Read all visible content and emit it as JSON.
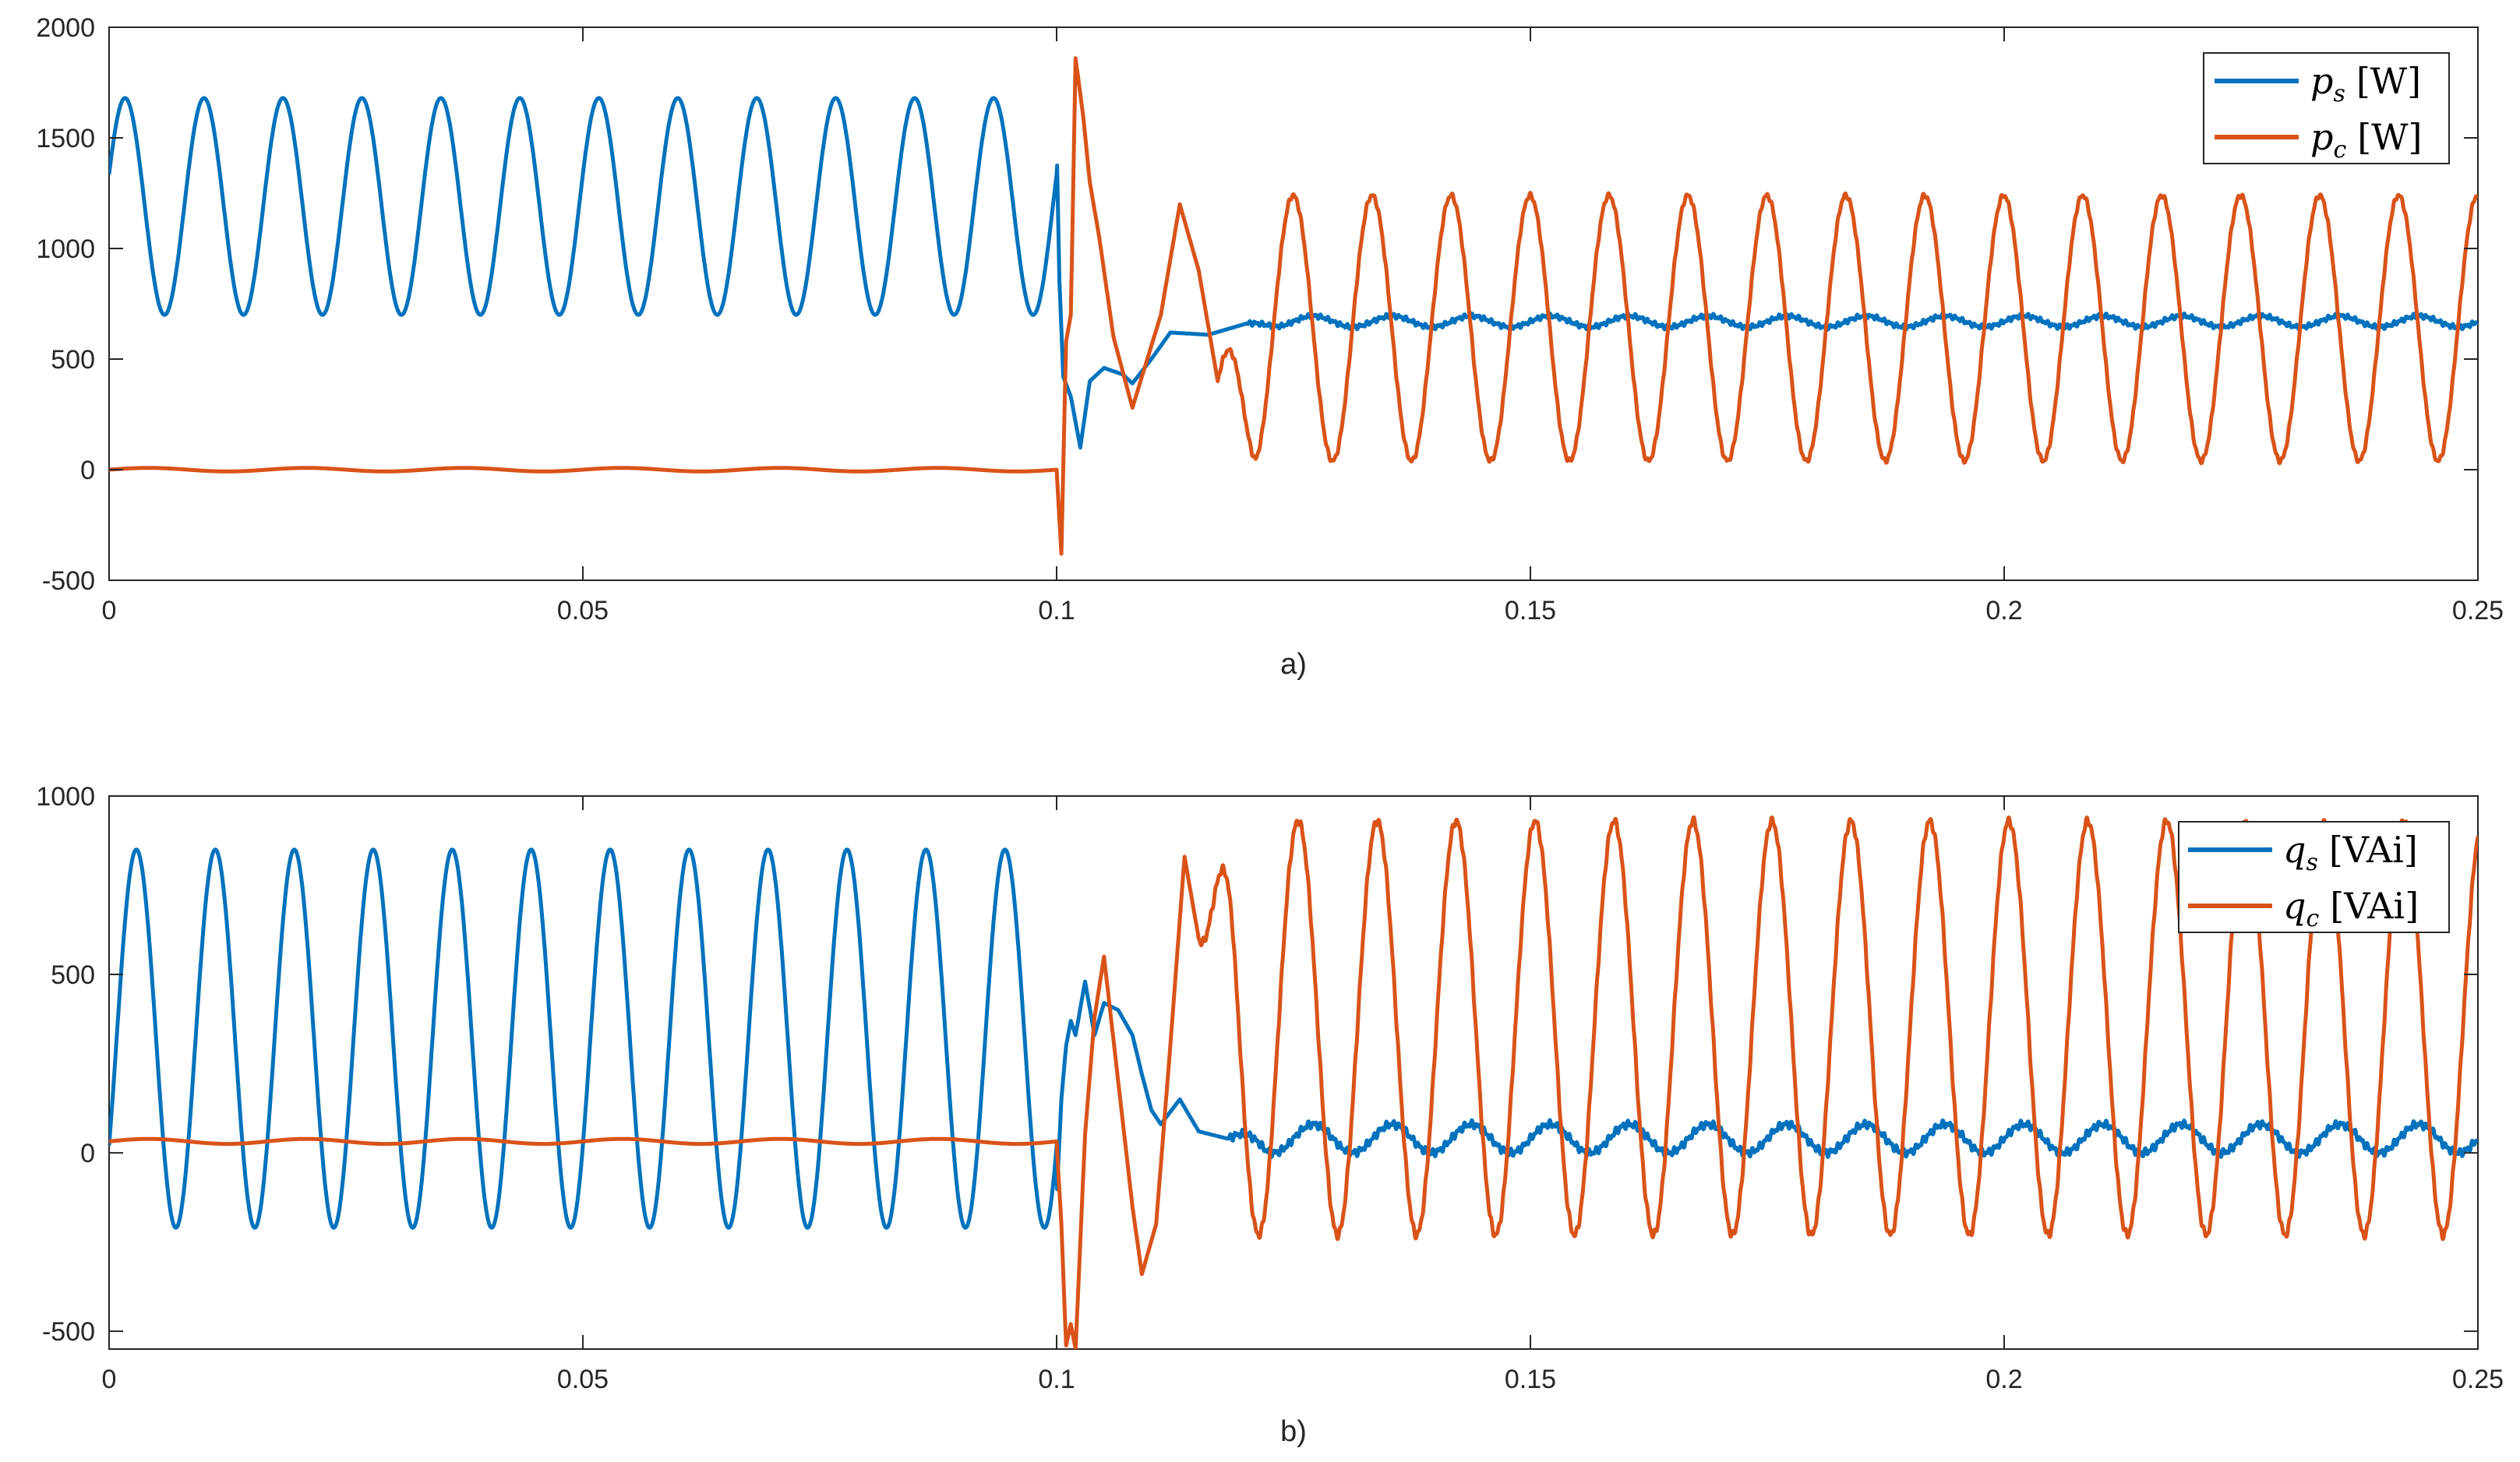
{
  "chart_data": [
    {
      "type": "line",
      "caption": "a)",
      "xlim": [
        0,
        0.25
      ],
      "ylim": [
        -500,
        2000
      ],
      "xticks": [
        0,
        0.05,
        0.1,
        0.15,
        0.2,
        0.25
      ],
      "xtick_labels": [
        "0",
        "0.05",
        "0.1",
        "0.15",
        "0.2",
        "0.25"
      ],
      "yticks": [
        -500,
        0,
        500,
        1000,
        1500,
        2000
      ],
      "ytick_labels": [
        "-500",
        "0",
        "500",
        "1000",
        "1500",
        "2000"
      ],
      "grid": false,
      "legend_position": "top-right",
      "event_time": 0.1,
      "series": [
        {
          "symbol": "p",
          "sub": "s",
          "unit": "[W]",
          "color": "#0072BD",
          "before": {
            "mean": 1190,
            "amplitude": 490,
            "freq_hz": 120,
            "phase": 0.3
          },
          "transient": [
            [
              0.1,
              1480
            ],
            [
              0.1003,
              850
            ],
            [
              0.1007,
              420
            ],
            [
              0.1015,
              330
            ],
            [
              0.1025,
              100
            ],
            [
              0.1035,
              400
            ],
            [
              0.105,
              460
            ],
            [
              0.107,
              430
            ],
            [
              0.108,
              390
            ],
            [
              0.11,
              500
            ],
            [
              0.112,
              620
            ],
            [
              0.116,
              610
            ],
            [
              0.12,
              660
            ]
          ],
          "after": {
            "mean": 670,
            "amplitude": 25,
            "freq_hz": 120,
            "phase": 0.0
          }
        },
        {
          "symbol": "p",
          "sub": "c",
          "unit": "[W]",
          "color": "#D95319",
          "before": {
            "mean": 0,
            "amplitude": 8,
            "freq_hz": 60,
            "phase": 0.0
          },
          "transient": [
            [
              0.1,
              0
            ],
            [
              0.1005,
              -380
            ],
            [
              0.101,
              580
            ],
            [
              0.1015,
              700
            ],
            [
              0.102,
              1860
            ],
            [
              0.1028,
              1600
            ],
            [
              0.1035,
              1300
            ],
            [
              0.1045,
              1050
            ],
            [
              0.106,
              600
            ],
            [
              0.108,
              280
            ],
            [
              0.111,
              700
            ],
            [
              0.113,
              1200
            ],
            [
              0.115,
              900
            ],
            [
              0.117,
              400
            ]
          ],
          "after": {
            "mean": 640,
            "amplitude": 600,
            "freq_hz": 120,
            "phase": 1.6
          }
        }
      ]
    },
    {
      "type": "line",
      "caption": "b)",
      "xlim": [
        0,
        0.25
      ],
      "ylim": [
        -550,
        1000
      ],
      "xticks": [
        0,
        0.05,
        0.1,
        0.15,
        0.2,
        0.25
      ],
      "xtick_labels": [
        "0",
        "0.05",
        "0.1",
        "0.15",
        "0.2",
        "0.25"
      ],
      "yticks": [
        -500,
        0,
        500,
        1000
      ],
      "ytick_labels": [
        "-500",
        "0",
        "500",
        "1000"
      ],
      "grid": false,
      "legend_position": "top-right",
      "event_time": 0.1,
      "series": [
        {
          "symbol": "q",
          "sub": "s",
          "unit": "[VAi]",
          "color": "#0072BD",
          "before": {
            "mean": 320,
            "amplitude": 530,
            "freq_hz": 120,
            "phase": -0.6
          },
          "transient": [
            [
              0.1,
              -130
            ],
            [
              0.1005,
              150
            ],
            [
              0.101,
              300
            ],
            [
              0.1015,
              370
            ],
            [
              0.102,
              330
            ],
            [
              0.103,
              480
            ],
            [
              0.104,
              330
            ],
            [
              0.105,
              420
            ],
            [
              0.1065,
              400
            ],
            [
              0.108,
              330
            ],
            [
              0.109,
              220
            ],
            [
              0.11,
              120
            ],
            [
              0.111,
              80
            ],
            [
              0.113,
              150
            ],
            [
              0.115,
              60
            ],
            [
              0.118,
              40
            ]
          ],
          "after": {
            "mean": 40,
            "amplitude": 40,
            "freq_hz": 120,
            "phase": 0.0
          }
        },
        {
          "symbol": "q",
          "sub": "c",
          "unit": "[VAi]",
          "color": "#D95319",
          "before": {
            "mean": 32,
            "amplitude": 7,
            "freq_hz": 60,
            "phase": 0.0
          },
          "transient": [
            [
              0.1,
              30
            ],
            [
              0.1005,
              -200
            ],
            [
              0.101,
              -540
            ],
            [
              0.1015,
              -480
            ],
            [
              0.102,
              -550
            ],
            [
              0.103,
              50
            ],
            [
              0.104,
              380
            ],
            [
              0.105,
              550
            ],
            [
              0.1065,
              200
            ],
            [
              0.108,
              -150
            ],
            [
              0.109,
              -340
            ],
            [
              0.1105,
              -200
            ],
            [
              0.112,
              300
            ],
            [
              0.1135,
              830
            ],
            [
              0.115,
              600
            ]
          ],
          "after": {
            "mean": 350,
            "amplitude": 580,
            "freq_hz": 120,
            "phase": 1.2
          }
        }
      ]
    }
  ]
}
